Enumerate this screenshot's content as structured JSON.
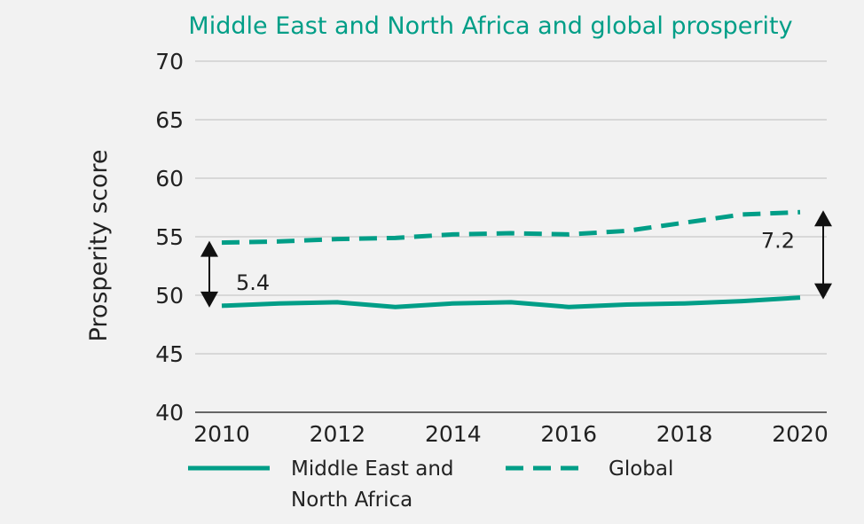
{
  "chart_data": {
    "type": "line",
    "title": "Middle East and North Africa and global prosperity",
    "xlabel": "",
    "ylabel": "Prosperity score",
    "xlim": [
      2010,
      2020
    ],
    "ylim": [
      40,
      70
    ],
    "x_ticks": [
      2010,
      2012,
      2014,
      2016,
      2018,
      2020
    ],
    "y_ticks": [
      40,
      45,
      50,
      55,
      60,
      65,
      70
    ],
    "grid": "horizontal",
    "legend_position": "bottom",
    "x": [
      2010,
      2011,
      2012,
      2013,
      2014,
      2015,
      2016,
      2017,
      2018,
      2019,
      2020
    ],
    "series": [
      {
        "name": "Middle East and North Africa",
        "name_lines": [
          "Middle East and",
          "North Africa"
        ],
        "style": "solid",
        "color": "#009e87",
        "values": [
          49.1,
          49.3,
          49.4,
          49.0,
          49.3,
          49.4,
          49.0,
          49.2,
          49.3,
          49.5,
          49.8
        ]
      },
      {
        "name": "Global",
        "name_lines": [
          "Global"
        ],
        "style": "dashed",
        "color": "#009e87",
        "values": [
          54.5,
          54.6,
          54.8,
          54.9,
          55.2,
          55.3,
          55.2,
          55.5,
          56.2,
          56.9,
          57.1
        ]
      }
    ],
    "annotations": [
      {
        "text": "5.4",
        "x": 2010,
        "from": 49.1,
        "to": 54.5,
        "label_side": "right"
      },
      {
        "text": "7.2",
        "x": 2020,
        "from": 49.8,
        "to": 57.1,
        "label_side": "left"
      }
    ]
  }
}
